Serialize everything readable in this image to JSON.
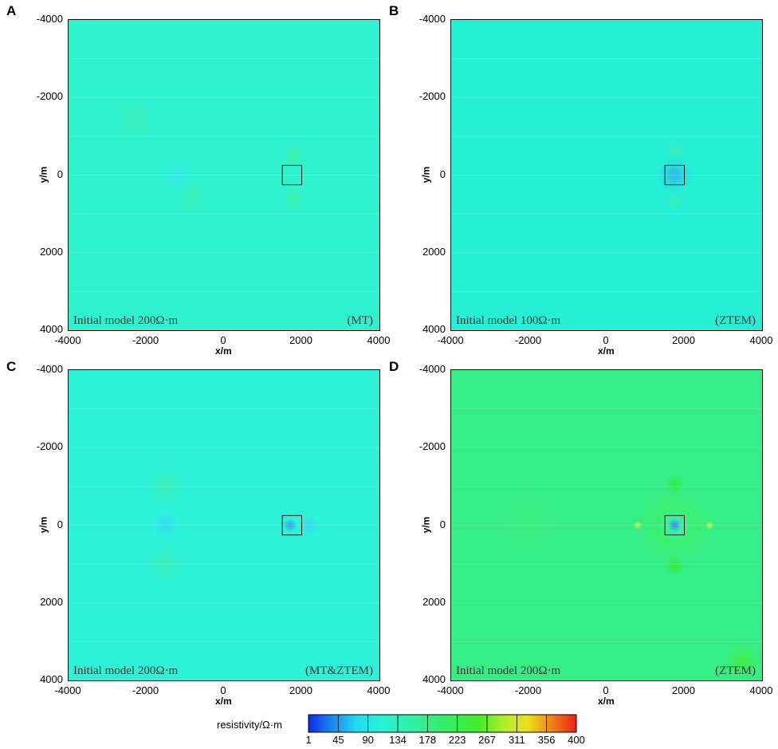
{
  "chart_data": [
    {
      "panel": "A",
      "type": "heatmap",
      "note_left": "Initial model 200Ω·m",
      "note_right": "(MT)",
      "xlabel": "",
      "ylabel": "y/m",
      "xlim": [
        -4000,
        4000
      ],
      "ylim": [
        -4000,
        4000
      ],
      "background": "#2ff3cf",
      "target_box": {
        "x": [
          1500,
          2000
        ],
        "y": [
          -250,
          250
        ]
      },
      "anomalies": [
        {
          "x": 1800,
          "y": -500,
          "r": 300,
          "color": "#3cf0a6"
        },
        {
          "x": 1800,
          "y": 600,
          "r": 300,
          "color": "#3cf0a6"
        },
        {
          "x": -1200,
          "y": 0,
          "r": 450,
          "color": "#35e8e6"
        },
        {
          "x": -2300,
          "y": -1400,
          "r": 500,
          "color": "#3cf0b8"
        },
        {
          "x": -800,
          "y": 600,
          "r": 400,
          "color": "#3cf0b8"
        }
      ]
    },
    {
      "panel": "B",
      "type": "heatmap",
      "note_left": "Initial model 100Ω·m",
      "note_right": "(ZTEM)",
      "xlabel": "x/m",
      "ylabel": "y/m",
      "xlim": [
        -4000,
        4000
      ],
      "ylim": [
        -4000,
        4000
      ],
      "background": "#25f0d6",
      "target_box": {
        "x": [
          1500,
          2000
        ],
        "y": [
          -250,
          250
        ]
      },
      "anomalies": [
        {
          "x": 1750,
          "y": 0,
          "r": 230,
          "color": "#2f7fe8"
        },
        {
          "x": 1750,
          "y": 0,
          "r": 480,
          "color": "#30c8e8"
        },
        {
          "x": 1750,
          "y": -650,
          "r": 260,
          "color": "#3aeebb"
        },
        {
          "x": 1750,
          "y": 650,
          "r": 260,
          "color": "#3aeebb"
        }
      ]
    },
    {
      "panel": "C",
      "type": "heatmap",
      "note_left": "Initial model 200Ω·m",
      "note_right": "(MT&ZTEM)",
      "xlabel": "",
      "ylabel": "y/m",
      "xlim": [
        -4000,
        4000
      ],
      "ylim": [
        -4000,
        4000
      ],
      "background": "#2cf2d8",
      "target_box": {
        "x": [
          1500,
          2000
        ],
        "y": [
          -250,
          250
        ]
      },
      "anomalies": [
        {
          "x": 1700,
          "y": 0,
          "r": 180,
          "color": "#3a9ae8"
        },
        {
          "x": 2200,
          "y": 0,
          "r": 250,
          "color": "#38d8ee"
        },
        {
          "x": -1500,
          "y": 0,
          "r": 380,
          "color": "#33dff0"
        },
        {
          "x": -1500,
          "y": -1000,
          "r": 500,
          "color": "#3ef0b5"
        },
        {
          "x": -1500,
          "y": 1000,
          "r": 500,
          "color": "#3ef0b5"
        }
      ]
    },
    {
      "panel": "D",
      "type": "heatmap",
      "note_left": "Initial model 200Ω·m",
      "note_right": "(ZTEM)",
      "xlabel": "x/m",
      "ylabel": "y/m",
      "xlim": [
        -4000,
        4000
      ],
      "ylim": [
        -4000,
        4000
      ],
      "background": "#36ee86",
      "target_box": {
        "x": [
          1500,
          2000
        ],
        "y": [
          -250,
          250
        ]
      },
      "anomalies": [
        {
          "x": 1750,
          "y": 0,
          "r": 1000,
          "color": "#40f060"
        },
        {
          "x": 1750,
          "y": 0,
          "r": 420,
          "color": "#3af2d6"
        },
        {
          "x": 1750,
          "y": 0,
          "r": 180,
          "color": "#2f86e6"
        },
        {
          "x": 800,
          "y": 0,
          "r": 110,
          "color": "#e6ee30"
        },
        {
          "x": 2650,
          "y": 0,
          "r": 110,
          "color": "#e6ee30"
        },
        {
          "x": 1750,
          "y": -1050,
          "r": 250,
          "color": "#30ec36"
        },
        {
          "x": 1750,
          "y": 1050,
          "r": 250,
          "color": "#30ec36"
        },
        {
          "x": -2000,
          "y": 0,
          "r": 900,
          "color": "#3aef80"
        },
        {
          "x": 3500,
          "y": 3500,
          "r": 450,
          "color": "#44ee44"
        }
      ]
    }
  ],
  "axis_ticks": [
    "-4000",
    "-2000",
    "0",
    "2000",
    "4000"
  ],
  "y_ticks_labels": [
    "-4000",
    "-2000",
    "0",
    "2000",
    "4000"
  ],
  "colorbar": {
    "title": "resistivity/Ω·m",
    "ticks": [
      "1",
      "45",
      "90",
      "134",
      "178",
      "223",
      "267",
      "311",
      "356",
      "400"
    ],
    "colors": [
      "#0a2ee8",
      "#1a8aee",
      "#22ddee",
      "#28f2d2",
      "#2ef0ab",
      "#34ef80",
      "#36ee55",
      "#44ec28",
      "#b0ee26",
      "#eede1e",
      "#ee8218",
      "#ee1e16"
    ]
  }
}
